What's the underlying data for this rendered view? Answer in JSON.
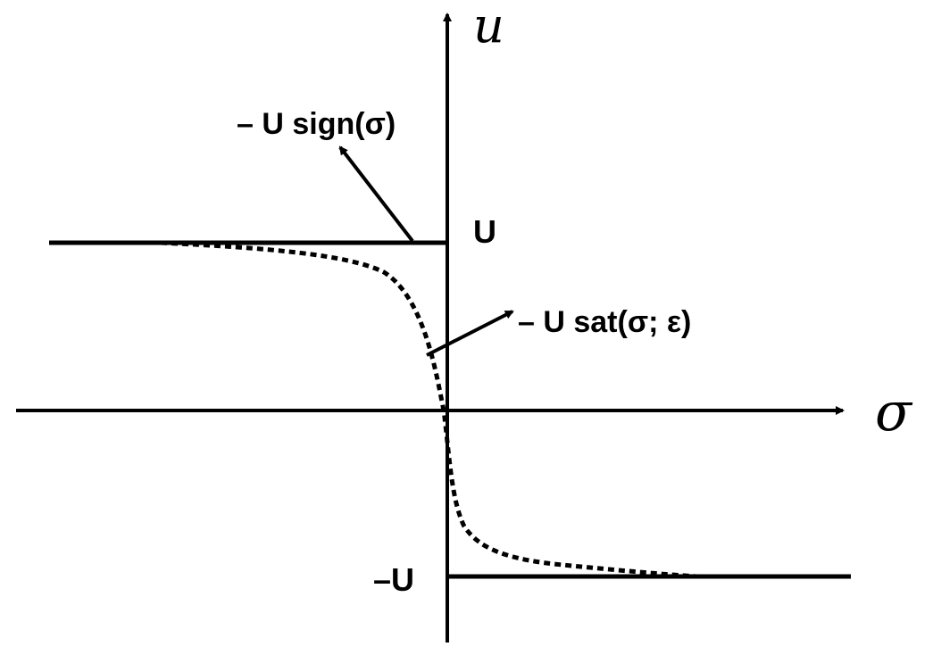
{
  "axes": {
    "x_symbol": "σ",
    "y_symbol": "u"
  },
  "levels": {
    "upper": "U",
    "lower": "–U"
  },
  "annotations": {
    "sign_label": "– U sign(σ)",
    "sat_label": "– U sat(σ; ε)"
  },
  "colors": {
    "ink": "#000000",
    "background": "#ffffff"
  }
}
